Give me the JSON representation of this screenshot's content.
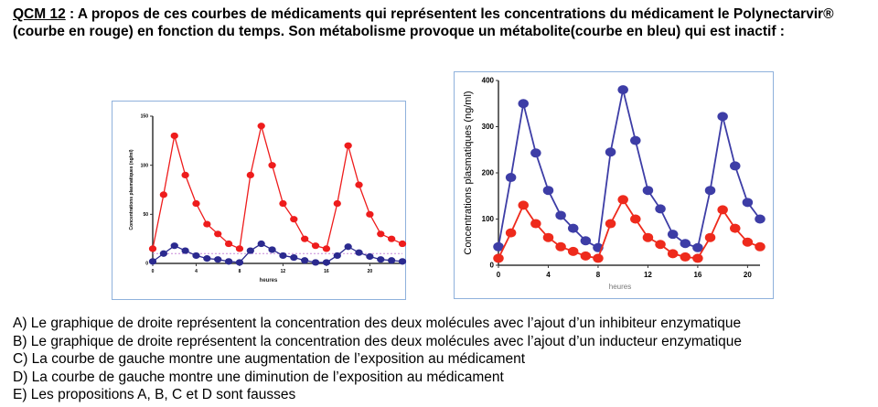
{
  "question": {
    "number": "QCM 12",
    "text": " : A propos de ces courbes de médicaments qui représentent les concentrations du médicament le Polynectarvir® (courbe en rouge) en fonction du temps. Son métabolisme provoque un métabolite(courbe en bleu) qui est inactif :"
  },
  "chart_data": [
    {
      "type": "line",
      "title": "",
      "xlabel": "heures",
      "ylabel": "Concentrations plasmatiques (ng/ml)",
      "xlim": [
        0,
        23
      ],
      "ylim": [
        0,
        150
      ],
      "xticks": [
        "0",
        "4",
        "8",
        "12",
        "16",
        "20"
      ],
      "yticks": [
        "0",
        "50",
        "100",
        "150"
      ],
      "x": [
        0,
        1,
        2,
        3,
        4,
        5,
        6,
        7,
        8,
        9,
        10,
        11,
        12,
        13,
        14,
        15,
        16,
        17,
        18,
        19,
        20,
        21,
        22,
        23
      ],
      "series": [
        {
          "name": "Polynectarvir",
          "color": "#ee1c1c",
          "values": [
            15,
            70,
            130,
            90,
            61,
            40,
            30,
            20,
            15,
            90,
            140,
            100,
            61,
            45,
            25,
            18,
            15,
            61,
            120,
            80,
            50,
            30,
            25,
            20
          ]
        },
        {
          "name": "métabolite",
          "color": "#2b2a8f",
          "values": [
            2,
            10,
            18,
            13,
            8,
            5,
            4,
            2,
            1,
            13,
            20,
            14,
            8,
            6,
            3,
            1,
            1,
            8,
            17,
            11,
            7,
            4,
            3,
            2
          ]
        }
      ],
      "reference_line": 10
    },
    {
      "type": "line",
      "title": "",
      "xlabel": "heures",
      "ylabel": "Concentrations plasmatiques (ng/ml)",
      "xlim": [
        0,
        21
      ],
      "ylim": [
        0,
        400
      ],
      "xticks": [
        "0",
        "4",
        "8",
        "12",
        "16",
        "20"
      ],
      "yticks": [
        "0",
        "100",
        "200",
        "300",
        "400"
      ],
      "x": [
        0,
        1,
        2,
        3,
        4,
        5,
        6,
        7,
        8,
        9,
        10,
        11,
        12,
        13,
        14,
        15,
        16,
        17,
        18,
        19,
        20,
        21
      ],
      "series": [
        {
          "name": "métabolite",
          "color": "#3d3da6",
          "values": [
            40,
            190,
            350,
            243,
            162,
            108,
            80,
            53,
            38,
            245,
            380,
            270,
            162,
            122,
            67,
            47,
            38,
            162,
            322,
            215,
            136,
            100
          ]
        },
        {
          "name": "Polynectarvir",
          "color": "#ee2a1c",
          "values": [
            15,
            70,
            130,
            90,
            60,
            40,
            30,
            20,
            15,
            90,
            142,
            100,
            60,
            45,
            25,
            18,
            15,
            60,
            120,
            80,
            50,
            40
          ]
        }
      ]
    }
  ],
  "answers": [
    "A) Le graphique de droite représentent la concentration des deux molécules avec l’ajout d’un inhibiteur enzymatique",
    "B) Le graphique de droite représentent la concentration des deux molécules avec l’ajout d’un inducteur enzymatique",
    "C) La courbe de gauche montre une augmentation de l’exposition au médicament",
    "D) La courbe de gauche montre une diminution de l’exposition au médicament",
    "E) Les propositions A, B, C et D sont fausses"
  ]
}
